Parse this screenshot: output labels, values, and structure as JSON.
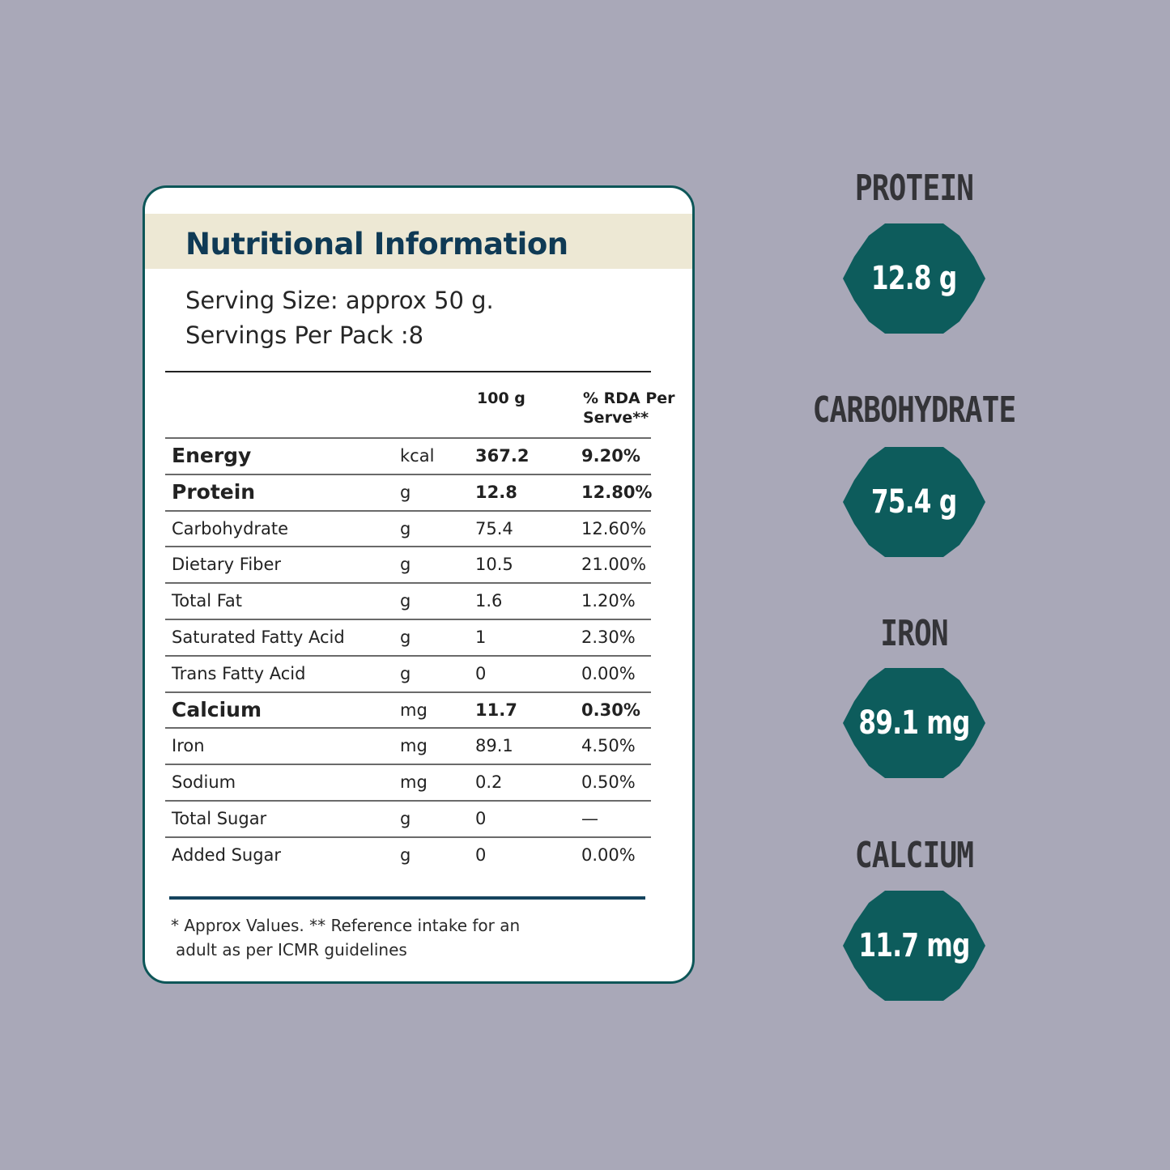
{
  "label": {
    "title": "Nutritional Information",
    "serving_size": "Serving Size: approx 50 g.",
    "servings_per_pack": "Servings Per Pack :8",
    "col_per100": "100 g",
    "col_rda_line1": "% RDA Per",
    "col_rda_line2": "Serve**",
    "rows": [
      {
        "name": "Energy",
        "unit": "kcal",
        "value": "367.2",
        "rda": "9.20%",
        "bold": true
      },
      {
        "name": "Protein",
        "unit": "g",
        "value": "12.8",
        "rda": "12.80%",
        "bold": true
      },
      {
        "name": "Carbohydrate",
        "unit": "g",
        "value": "75.4",
        "rda": "12.60%",
        "bold": false
      },
      {
        "name": "Dietary Fiber",
        "unit": "g",
        "value": "10.5",
        "rda": "21.00%",
        "bold": false
      },
      {
        "name": "Total Fat",
        "unit": "g",
        "value": "1.6",
        "rda": "1.20%",
        "bold": false
      },
      {
        "name": "Saturated Fatty Acid",
        "unit": "g",
        "value": "1",
        "rda": "2.30%",
        "bold": false
      },
      {
        "name": "Trans Fatty Acid",
        "unit": "g",
        "value": "0",
        "rda": "0.00%",
        "bold": false
      },
      {
        "name": "Calcium",
        "unit": "mg",
        "value": "11.7",
        "rda": "0.30%",
        "bold": true
      },
      {
        "name": "Iron",
        "unit": "mg",
        "value": "89.1",
        "rda": "4.50%",
        "bold": false
      },
      {
        "name": "Sodium",
        "unit": "mg",
        "value": "0.2",
        "rda": "0.50%",
        "bold": false
      },
      {
        "name": "Total Sugar",
        "unit": "g",
        "value": "0",
        "rda": "—",
        "bold": false
      },
      {
        "name": "Added Sugar",
        "unit": "g",
        "value": "0",
        "rda": "0.00%",
        "bold": false
      }
    ],
    "footnote_line1": "* Approx Values. ** Reference intake for an",
    "footnote_line2": "adult as per ICMR guidelines"
  },
  "highlights": [
    {
      "label": "PROTEIN",
      "value": "12.8 g"
    },
    {
      "label": "CARBOHYDRATE",
      "value": "75.4 g"
    },
    {
      "label": "IRON",
      "value": "89.1 mg"
    },
    {
      "label": "CALCIUM",
      "value": "11.7 mg"
    }
  ],
  "colors": {
    "background": "#a9a8b8",
    "badge": "#0d5c5c",
    "title": "#0f3a55",
    "header_band": "#ede8d4"
  }
}
